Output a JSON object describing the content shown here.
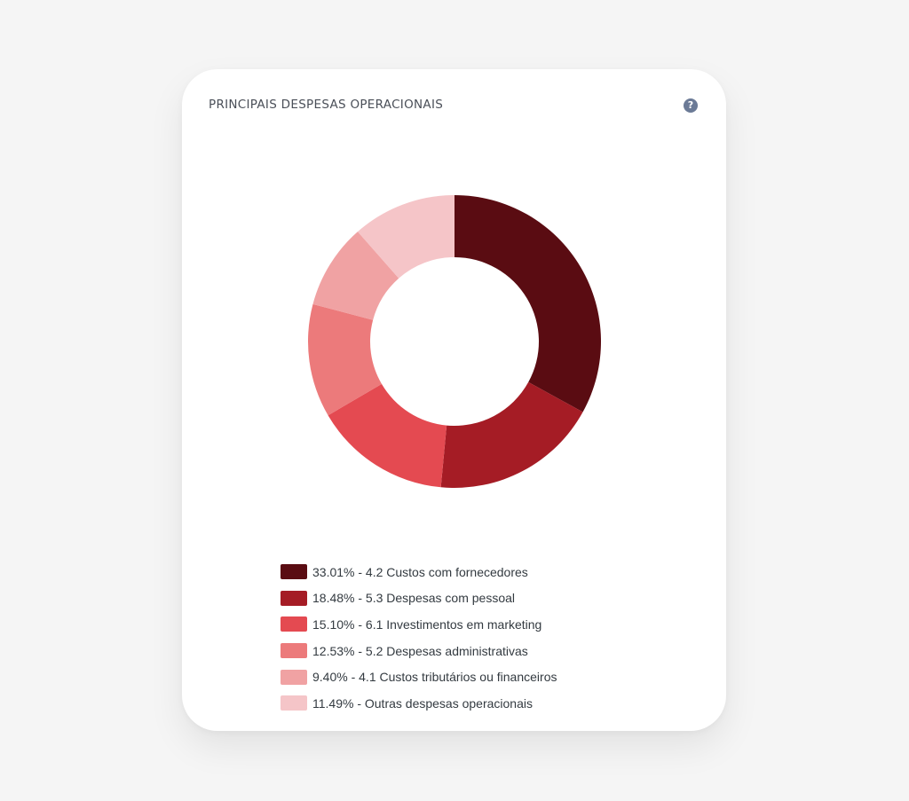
{
  "card": {
    "title": "PRINCIPAIS DESPESAS OPERACIONAIS",
    "help_icon_glyph": "?"
  },
  "chart_data": {
    "type": "pie",
    "variant": "donut",
    "title": "PRINCIPAIS DESPESAS OPERACIONAIS",
    "legend_position": "bottom",
    "slices": [
      {
        "value": 33.01,
        "label": "33.01% - 4.2 Custos com fornecedores",
        "color": "#5a0c12"
      },
      {
        "value": 18.48,
        "label": "18.48% - 5.3 Despesas com pessoal",
        "color": "#a51c25"
      },
      {
        "value": 15.1,
        "label": "15.10% - 6.1 Investimentos em marketing",
        "color": "#e44a51"
      },
      {
        "value": 12.53,
        "label": "12.53% - 5.2 Despesas administrativas",
        "color": "#ec7a7b"
      },
      {
        "value": 9.4,
        "label": "9.40% - 4.1 Custos tributários ou financeiros",
        "color": "#f0a2a3"
      },
      {
        "value": 11.49,
        "label": "11.49% - Outras despesas operacionais",
        "color": "#f5c5c8"
      }
    ]
  }
}
